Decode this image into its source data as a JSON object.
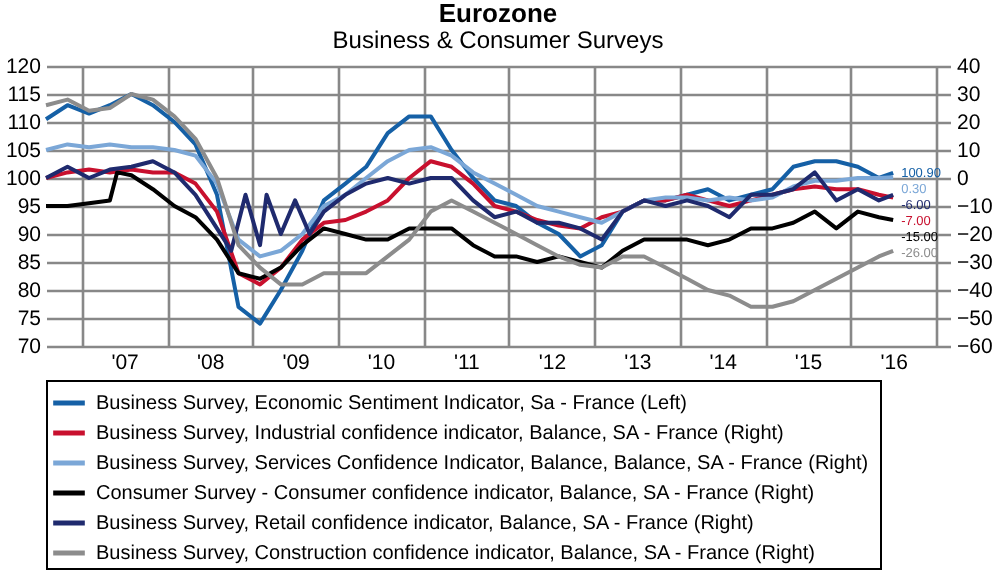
{
  "chart_data": {
    "type": "line",
    "title": "Eurozone",
    "subtitle": "Business & Consumer Surveys",
    "x": [
      "2006-08",
      "2006-11",
      "2007-02",
      "2007-05",
      "2007-08",
      "2007-11",
      "2008-02",
      "2008-05",
      "2008-08",
      "2008-11",
      "2009-02",
      "2009-05",
      "2009-08",
      "2009-11",
      "2010-02",
      "2010-05",
      "2010-08",
      "2010-11",
      "2011-02",
      "2011-05",
      "2011-08",
      "2011-11",
      "2012-02",
      "2012-05",
      "2012-08",
      "2012-11",
      "2013-02",
      "2013-05",
      "2013-08",
      "2013-11",
      "2014-02",
      "2014-05",
      "2014-08",
      "2014-11",
      "2015-02",
      "2015-05",
      "2015-08",
      "2015-11",
      "2016-02",
      "2016-05",
      "2016-07"
    ],
    "xlim": [
      "2006-08",
      "2017-03"
    ],
    "xticks": [
      {
        "value": "2007-01",
        "label": null
      },
      {
        "value": "2007-07",
        "label": "'07"
      },
      {
        "value": "2008-01",
        "label": null
      },
      {
        "value": "2008-07",
        "label": "'08"
      },
      {
        "value": "2009-01",
        "label": null
      },
      {
        "value": "2009-07",
        "label": "'09"
      },
      {
        "value": "2010-01",
        "label": null
      },
      {
        "value": "2010-07",
        "label": "'10"
      },
      {
        "value": "2011-01",
        "label": null
      },
      {
        "value": "2011-07",
        "label": "'11"
      },
      {
        "value": "2012-01",
        "label": null
      },
      {
        "value": "2012-07",
        "label": "'12"
      },
      {
        "value": "2013-01",
        "label": null
      },
      {
        "value": "2013-07",
        "label": "'13"
      },
      {
        "value": "2014-01",
        "label": null
      },
      {
        "value": "2014-07",
        "label": "'14"
      },
      {
        "value": "2015-01",
        "label": null
      },
      {
        "value": "2015-07",
        "label": "'15"
      },
      {
        "value": "2016-01",
        "label": null
      },
      {
        "value": "2016-07",
        "label": "'16"
      },
      {
        "value": "2017-01",
        "label": null
      }
    ],
    "ylim": [
      70,
      120
    ],
    "yticks": [
      70,
      75,
      80,
      85,
      90,
      95,
      100,
      105,
      110,
      115,
      120
    ],
    "y2lim": [
      -60,
      40
    ],
    "y2ticks": [
      -60,
      -50,
      -40,
      -30,
      -20,
      -10,
      0,
      10,
      20,
      30,
      40
    ],
    "grid": true,
    "legend": "bottom",
    "series": [
      {
        "name": "Business Survey, Economic Sentiment Indicator, Sa - France  (Left)",
        "color": "#1560a6",
        "values": [
          110.5,
          113,
          111.5,
          113,
          115,
          113,
          110,
          106,
          97,
          77,
          74,
          80,
          87,
          96,
          99,
          102,
          108,
          111,
          111,
          105,
          100,
          96,
          95,
          92,
          90,
          86,
          88,
          94,
          96,
          96,
          97,
          98,
          96,
          97,
          98,
          102,
          103,
          103,
          102,
          100,
          100.9
        ],
        "value_labels": [
          null,
          null,
          null,
          null,
          null,
          null,
          null,
          null,
          null,
          null,
          null,
          null,
          null,
          null,
          null,
          null,
          null,
          null,
          null,
          null,
          null,
          null,
          null,
          null,
          null,
          null,
          null,
          null,
          null,
          null,
          null,
          null,
          null,
          null,
          null,
          null,
          null,
          null,
          null,
          null,
          "100.90"
        ]
      },
      {
        "name": "Business Survey, Industrial confidence indicator, Balance, SA - France  (Right)",
        "color": "#c8102e",
        "axis": "y2",
        "values": [
          0,
          2,
          3,
          2,
          3,
          2,
          2,
          -2,
          -12,
          -34,
          -38,
          -32,
          -22,
          -16,
          -15,
          -12,
          -8,
          0,
          6,
          4,
          -2,
          -10,
          -12,
          -15,
          -17,
          -18,
          -14,
          -12,
          -8,
          -8,
          -6,
          -8,
          -10,
          -8,
          -6,
          -4,
          -3,
          -4,
          -4,
          -6,
          -7
        ],
        "value_labels": [
          null,
          null,
          null,
          null,
          null,
          null,
          null,
          null,
          null,
          null,
          null,
          null,
          null,
          null,
          null,
          null,
          null,
          null,
          null,
          null,
          null,
          null,
          null,
          null,
          null,
          null,
          null,
          null,
          null,
          null,
          null,
          null,
          null,
          null,
          null,
          null,
          null,
          null,
          null,
          null,
          "-7.00"
        ]
      },
      {
        "name": "Business Survey, Services Confidence Indicator, Balance, Balance, SA - France  (Right)",
        "color": "#7ba7d7",
        "axis": "y2",
        "values": [
          10,
          12,
          11,
          12,
          11,
          11,
          10,
          8,
          -2,
          -22,
          -28,
          -26,
          -20,
          -10,
          -6,
          0,
          6,
          10,
          11,
          8,
          2,
          -2,
          -6,
          -10,
          -12,
          -14,
          -16,
          -12,
          -8,
          -7,
          -7,
          -8,
          -7,
          -8,
          -7,
          -3,
          -1,
          -1,
          0,
          0,
          0.3
        ],
        "value_labels": [
          null,
          null,
          null,
          null,
          null,
          null,
          null,
          null,
          null,
          null,
          null,
          null,
          null,
          null,
          null,
          null,
          null,
          null,
          null,
          null,
          null,
          null,
          null,
          null,
          null,
          null,
          null,
          null,
          null,
          null,
          null,
          null,
          null,
          null,
          null,
          null,
          null,
          null,
          null,
          null,
          "0.30"
        ]
      },
      {
        "name": "Consumer Survey - Consumer confidence indicator, Balance, SA - France  (Right)",
        "color": "#000000",
        "axis": "y2",
        "x": [
          "2006-08",
          "2006-11",
          "2007-02",
          "2007-05",
          "2007-06",
          "2007-08",
          "2007-11",
          "2008-02",
          "2008-05",
          "2008-08",
          "2008-11",
          "2009-02",
          "2009-05",
          "2009-08",
          "2009-11",
          "2010-02",
          "2010-05",
          "2010-08",
          "2010-11",
          "2011-02",
          "2011-05",
          "2011-08",
          "2011-11",
          "2012-02",
          "2012-05",
          "2012-08",
          "2012-11",
          "2013-02",
          "2013-05",
          "2013-08",
          "2013-11",
          "2014-02",
          "2014-05",
          "2014-08",
          "2014-11",
          "2015-02",
          "2015-05",
          "2015-08",
          "2015-11",
          "2016-02",
          "2016-05",
          "2016-07"
        ],
        "values": [
          -10,
          -10,
          -9,
          -8,
          2,
          1,
          -4,
          -10,
          -14,
          -22,
          -34,
          -36,
          -32,
          -24,
          -18,
          -20,
          -22,
          -22,
          -18,
          -18,
          -18,
          -24,
          -28,
          -28,
          -30,
          -28,
          -30,
          -32,
          -26,
          -22,
          -22,
          -22,
          -24,
          -22,
          -18,
          -18,
          -16,
          -12,
          -18,
          -12,
          -14,
          -15
        ],
        "value_labels": [
          null,
          null,
          null,
          null,
          null,
          null,
          null,
          null,
          null,
          null,
          null,
          null,
          null,
          null,
          null,
          null,
          null,
          null,
          null,
          null,
          null,
          null,
          null,
          null,
          null,
          null,
          null,
          null,
          null,
          null,
          null,
          null,
          null,
          null,
          null,
          null,
          null,
          null,
          null,
          null,
          null,
          "-15.00"
        ]
      },
      {
        "name": "Business Survey, Retail confidence indicator, Balance, SA - France  (Right)",
        "color": "#1f2a6e",
        "axis": "y2",
        "x": [
          "2006-08",
          "2006-11",
          "2007-02",
          "2007-05",
          "2007-08",
          "2007-11",
          "2008-02",
          "2008-05",
          "2008-08",
          "2008-10",
          "2008-12",
          "2009-02",
          "2009-03",
          "2009-05",
          "2009-07",
          "2009-09",
          "2009-11",
          "2010-02",
          "2010-05",
          "2010-08",
          "2010-11",
          "2011-02",
          "2011-05",
          "2011-08",
          "2011-11",
          "2012-02",
          "2012-05",
          "2012-08",
          "2012-11",
          "2013-02",
          "2013-05",
          "2013-08",
          "2013-11",
          "2014-02",
          "2014-05",
          "2014-08",
          "2014-11",
          "2015-02",
          "2015-05",
          "2015-08",
          "2015-11",
          "2016-02",
          "2016-05",
          "2016-07"
        ],
        "values": [
          0,
          4,
          0,
          3,
          4,
          6,
          2,
          -6,
          -18,
          -26,
          -6,
          -24,
          -6,
          -20,
          -8,
          -20,
          -12,
          -6,
          -2,
          0,
          -2,
          0,
          0,
          -8,
          -14,
          -12,
          -16,
          -16,
          -18,
          -22,
          -12,
          -8,
          -10,
          -8,
          -10,
          -14,
          -6,
          -6,
          -4,
          2,
          -8,
          -4,
          -8,
          -6
        ],
        "value_labels": [
          null,
          null,
          null,
          null,
          null,
          null,
          null,
          null,
          null,
          null,
          null,
          null,
          null,
          null,
          null,
          null,
          null,
          null,
          null,
          null,
          null,
          null,
          null,
          null,
          null,
          null,
          null,
          null,
          null,
          null,
          null,
          null,
          null,
          null,
          null,
          null,
          null,
          null,
          null,
          null,
          null,
          null,
          null,
          "-6.00"
        ]
      },
      {
        "name": "Business Survey, Construction confidence indicator, Balance, SA - France  (Right)",
        "color": "#8c8c8c",
        "axis": "y2",
        "values": [
          26,
          28,
          24,
          25,
          30,
          28,
          22,
          14,
          0,
          -24,
          -32,
          -38,
          -38,
          -34,
          -34,
          -34,
          -28,
          -22,
          -12,
          -8,
          -12,
          -16,
          -20,
          -24,
          -28,
          -31,
          -32,
          -28,
          -28,
          -32,
          -36,
          -40,
          -42,
          -46,
          -46,
          -44,
          -40,
          -36,
          -32,
          -28,
          -26
        ],
        "value_labels": [
          null,
          null,
          null,
          null,
          null,
          null,
          null,
          null,
          null,
          null,
          null,
          null,
          null,
          null,
          null,
          null,
          null,
          null,
          null,
          null,
          null,
          null,
          null,
          null,
          null,
          null,
          null,
          null,
          null,
          null,
          null,
          null,
          null,
          null,
          null,
          null,
          null,
          null,
          null,
          null,
          "-26.00"
        ]
      }
    ]
  }
}
